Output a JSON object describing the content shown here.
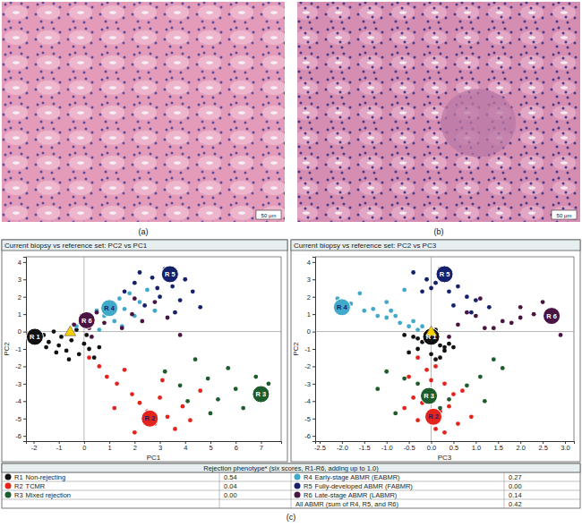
{
  "images": [
    {
      "label": "(a)",
      "scale_bar": "50 μm"
    },
    {
      "label": "(b)",
      "scale_bar": "50 μm"
    }
  ],
  "caption": "(c)",
  "chart_data": [
    {
      "type": "scatter",
      "title": "Current biopsy vs reference set: PC2 vs PC1",
      "x_label": "PC1",
      "y_label": "PC2",
      "xlim": [
        -2.3,
        7.8
      ],
      "ylim": [
        -6.3,
        4.3
      ],
      "xticks": [
        -2,
        -1,
        0,
        1,
        2,
        3,
        4,
        5,
        6,
        7
      ],
      "yticks": [
        -6,
        -5,
        -4,
        -3,
        -2,
        -1,
        0,
        1,
        2,
        3,
        4
      ],
      "grid": false,
      "marker": "circle",
      "series": [
        {
          "name": "R 1",
          "color": "#111111",
          "x": [
            -1.8,
            -1.6,
            -1.4,
            -1.2,
            -1.0,
            -0.9,
            -0.7,
            -0.5,
            -0.3,
            -0.2,
            0.0,
            0.2,
            0.4,
            -1.1,
            -0.6,
            0.1,
            -1.5,
            0.6
          ],
          "values": [
            -0.4,
            -0.2,
            -0.6,
            0.0,
            -0.8,
            -0.3,
            -1.1,
            -0.5,
            0.1,
            -1.3,
            -0.7,
            -1.0,
            -1.5,
            -1.2,
            -1.6,
            -0.2,
            -0.9,
            -0.9
          ],
          "centroid": [
            -1.95,
            -0.3
          ]
        },
        {
          "name": "R 2",
          "color": "#e3241d",
          "x": [
            0.2,
            0.6,
            0.9,
            1.3,
            1.6,
            1.9,
            2.2,
            2.5,
            2.8,
            3.0,
            3.3,
            3.6,
            3.9,
            4.2,
            4.6,
            2.0,
            1.2,
            3.1
          ],
          "values": [
            -1.5,
            -2.0,
            -2.6,
            -3.0,
            -2.2,
            -3.6,
            -4.1,
            -4.6,
            -5.3,
            -3.8,
            -4.9,
            -5.6,
            -4.3,
            -5.1,
            -3.4,
            -5.8,
            -4.4,
            -2.8
          ],
          "centroid": [
            2.6,
            -5.0
          ]
        },
        {
          "name": "R 3",
          "color": "#1d5c2c",
          "x": [
            3.2,
            3.8,
            4.4,
            4.9,
            5.3,
            5.7,
            6.0,
            6.3,
            6.8,
            7.3,
            5.0,
            4.1
          ],
          "values": [
            -2.3,
            -3.1,
            -1.6,
            -2.7,
            -3.9,
            -2.1,
            -3.3,
            -4.4,
            -2.6,
            -3.0,
            -4.7,
            -4.0
          ],
          "centroid": [
            7.0,
            -3.6
          ]
        },
        {
          "name": "R 4",
          "color": "#41a9c9",
          "x": [
            -0.3,
            0.0,
            0.3,
            0.5,
            0.8,
            1.0,
            1.2,
            1.4,
            1.6,
            1.8,
            2.0,
            2.2,
            2.5,
            0.6,
            1.5,
            2.8
          ],
          "values": [
            0.3,
            0.8,
            0.5,
            1.2,
            0.9,
            1.6,
            0.6,
            1.9,
            1.3,
            2.2,
            0.9,
            1.7,
            2.4,
            0.1,
            0.3,
            1.2
          ],
          "centroid": [
            1.0,
            1.35
          ]
        },
        {
          "name": "R 5",
          "color": "#15226b",
          "x": [
            1.6,
            2.0,
            2.4,
            2.7,
            3.0,
            3.2,
            3.5,
            3.8,
            4.0,
            4.3,
            4.6,
            2.2,
            3.6,
            2.9
          ],
          "values": [
            2.3,
            2.8,
            1.5,
            3.1,
            2.0,
            3.6,
            2.6,
            1.8,
            3.0,
            2.3,
            1.4,
            3.4,
            1.1,
            2.5
          ],
          "centroid": [
            3.4,
            3.3
          ]
        },
        {
          "name": "R 6",
          "color": "#4a1442",
          "x": [
            -0.4,
            -0.1,
            0.2,
            0.5,
            0.8,
            1.2,
            1.5,
            1.9,
            2.3,
            2.8,
            3.3,
            3.8,
            0.3,
            2.0
          ],
          "values": [
            0.4,
            0.9,
            0.2,
            1.1,
            0.5,
            1.4,
            0.2,
            1.0,
            0.6,
            1.7,
            0.8,
            -0.2,
            -0.3,
            1.9
          ],
          "centroid": [
            0.1,
            0.65
          ]
        }
      ],
      "current_biopsy": {
        "x": -0.55,
        "y": -0.05,
        "color": "#f5d000",
        "marker": "triangle"
      }
    },
    {
      "type": "scatter",
      "title": "Current biopsy vs reference set: PC2 vs PC3",
      "x_label": "PC3",
      "y_label": "PC2",
      "xlim": [
        -2.6,
        3.2
      ],
      "ylim": [
        -6.3,
        4.3
      ],
      "xticks": [
        -2.5,
        {
          "value": -2,
          "label": "-2.0"
        },
        -1.5,
        {
          "value": -1,
          "label": "-1.0"
        },
        -0.5,
        {
          "value": 0,
          "label": "0.0"
        },
        0.5,
        {
          "value": 1,
          "label": "1.0"
        },
        1.5,
        {
          "value": 2,
          "label": "2.0"
        },
        2.5,
        {
          "value": 3,
          "label": "3.0"
        }
      ],
      "yticks": [
        -6,
        -5,
        -4,
        -3,
        -2,
        -1,
        0,
        1,
        2,
        3,
        4
      ],
      "grid": false,
      "marker": "circle",
      "series": [
        {
          "name": "R 1",
          "color": "#111111",
          "x": [
            -0.3,
            0.1,
            -0.2,
            0.0,
            0.2,
            -0.4,
            0.3,
            -0.1,
            0.1,
            0.0,
            0.4,
            -0.3,
            0.2,
            -0.5,
            0.1,
            -0.6,
            0.3,
            0.5
          ],
          "values": [
            -0.4,
            -0.2,
            -0.6,
            0.0,
            -0.8,
            -0.3,
            -1.1,
            -0.5,
            0.1,
            -1.3,
            -0.7,
            -1.0,
            -1.5,
            -1.2,
            -1.6,
            -0.2,
            -0.9,
            -0.9
          ],
          "centroid": [
            0.0,
            -0.3
          ]
        },
        {
          "name": "R 2",
          "color": "#e3241d",
          "x": [
            -0.3,
            0.1,
            -0.5,
            0.3,
            -0.1,
            0.5,
            -0.2,
            0.2,
            0.6,
            -0.4,
            0.9,
            0.1,
            0.4,
            -0.3,
            0.7,
            0.3,
            -0.6,
            0.0
          ],
          "values": [
            -1.5,
            -2.0,
            -2.6,
            -3.0,
            -2.2,
            -3.6,
            -4.1,
            -4.6,
            -5.3,
            -3.8,
            -4.9,
            -5.6,
            -4.3,
            -5.1,
            -3.4,
            -5.8,
            -4.4,
            -2.8
          ],
          "centroid": [
            0.05,
            -4.9
          ]
        },
        {
          "name": "R 3",
          "color": "#1d5c2c",
          "x": [
            -1.0,
            0.8,
            1.4,
            -0.6,
            0.4,
            1.6,
            -1.2,
            0.2,
            1.1,
            -0.3,
            -0.8,
            1.2
          ],
          "values": [
            -2.3,
            -3.1,
            -1.6,
            -2.7,
            -3.9,
            -2.1,
            -3.3,
            -4.4,
            -2.6,
            -3.0,
            -4.7,
            -4.0
          ],
          "centroid": [
            -0.05,
            -3.7
          ]
        },
        {
          "name": "R 4",
          "color": "#41a9c9",
          "x": [
            -0.5,
            -1.0,
            -0.7,
            -1.5,
            -1.2,
            -1.8,
            -0.4,
            -2.1,
            -1.3,
            -1.6,
            -0.8,
            -1.0,
            -0.6,
            -0.3,
            -0.2,
            -0.9
          ],
          "values": [
            0.3,
            0.8,
            0.5,
            1.2,
            0.9,
            1.6,
            0.6,
            1.9,
            1.3,
            2.2,
            0.9,
            1.7,
            2.4,
            0.1,
            0.3,
            1.2
          ],
          "centroid": [
            -2.0,
            1.4
          ]
        },
        {
          "name": "R 5",
          "color": "#15226b",
          "x": [
            -0.2,
            0.1,
            0.5,
            0.3,
            0.8,
            0.2,
            0.6,
            1.0,
            -0.1,
            0.4,
            1.3,
            -0.4,
            0.9,
            0.0
          ],
          "values": [
            2.3,
            2.8,
            1.5,
            3.1,
            2.0,
            3.6,
            2.6,
            1.8,
            3.0,
            2.3,
            1.4,
            3.4,
            1.1,
            2.5
          ],
          "centroid": [
            0.3,
            3.3
          ]
        },
        {
          "name": "R 6",
          "color": "#4a1442",
          "x": [
            0.6,
            1.0,
            1.4,
            0.8,
            1.8,
            2.0,
            1.2,
            2.3,
            1.6,
            2.5,
            2.0,
            2.9,
            0.4,
            1.1
          ],
          "values": [
            0.4,
            0.9,
            0.2,
            1.1,
            0.5,
            1.4,
            0.2,
            1.0,
            0.6,
            1.7,
            0.8,
            -0.2,
            -0.3,
            1.9
          ],
          "centroid": [
            2.7,
            0.9
          ]
        }
      ],
      "current_biopsy": {
        "x": 0.0,
        "y": -0.05,
        "color": "#f5d000",
        "marker": "triangle"
      }
    }
  ],
  "table": {
    "title": "Rejection phenotype* (six scores, R1-R6, adding up to 1.0)",
    "rows": [
      [
        {
          "code": "R1",
          "label": "Non-rejecting",
          "value": "0.54",
          "color": "#111111"
        },
        {
          "code": "R4",
          "label": "Early-stage ABMR (EABMR)",
          "value": "0.27",
          "color": "#41a9c9"
        }
      ],
      [
        {
          "code": "R2",
          "label": "TCMR",
          "value": "0.04",
          "color": "#e3241d"
        },
        {
          "code": "R5",
          "label": "Fully-developed ABMR (FABMR)",
          "value": "0.00",
          "color": "#15226b"
        }
      ],
      [
        {
          "code": "R3",
          "label": "Mixed rejection",
          "value": "0.00",
          "color": "#1d5c2c"
        },
        {
          "code": "R6",
          "label": "Late-stage ABMR (LABMR)",
          "value": "0.14",
          "color": "#4a1442"
        }
      ]
    ],
    "total": {
      "label": "All ABMR (sum of R4, R5, and R6)",
      "value": "0.42"
    }
  }
}
